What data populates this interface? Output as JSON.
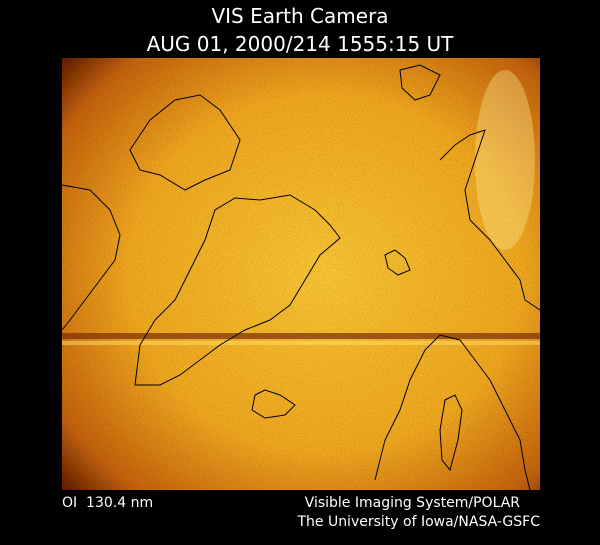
{
  "header": {
    "title": "VIS Earth Camera",
    "timestamp": "AUG 01, 2000/214 1555:15 UT"
  },
  "footer": {
    "wavelength": "OI  130.4 nm",
    "instrument": "Visible Imaging System/POLAR",
    "institution": "The University of Iowa/NASA-GSFC"
  }
}
